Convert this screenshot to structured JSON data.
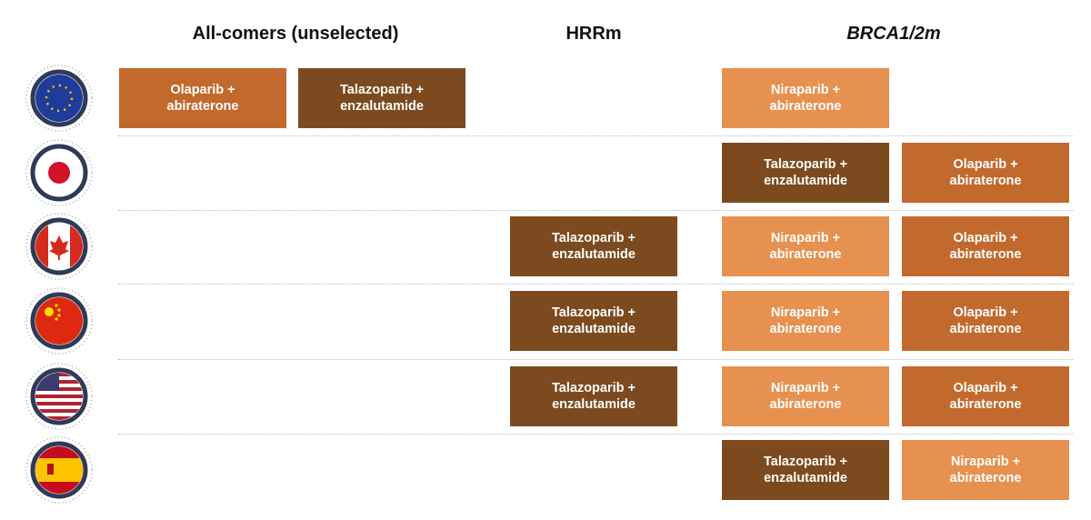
{
  "headers": [
    "All-comers (unselected)",
    "HRRm",
    "BRCA1/2m"
  ],
  "rows": [
    {
      "all_comers": [
        {
          "lines": [
            "Olaparib +",
            "abiraterone"
          ],
          "color": "#c2692d"
        },
        {
          "lines": [
            "Talazoparib +",
            "enzalutamide"
          ],
          "color": "#7d4a1f"
        }
      ],
      "hrrm": [],
      "brca": [
        {
          "lines": [
            "Niraparib +",
            "abiraterone"
          ],
          "color": "#e6914f"
        }
      ]
    },
    {
      "all_comers": [],
      "hrrm": [],
      "brca": [
        {
          "lines": [
            "Talazoparib +",
            "enzalutamide"
          ],
          "color": "#7d4a1f"
        },
        {
          "lines": [
            "Olaparib +",
            "abiraterone"
          ],
          "color": "#c2692d"
        }
      ]
    },
    {
      "all_comers": [],
      "hrrm": [
        {
          "lines": [
            "Talazoparib +",
            "enzalutamide"
          ],
          "color": "#7d4a1f"
        }
      ],
      "brca": [
        {
          "lines": [
            "Niraparib +",
            "abiraterone"
          ],
          "color": "#e6914f"
        },
        {
          "lines": [
            "Olaparib +",
            "abiraterone"
          ],
          "color": "#c2692d"
        }
      ]
    },
    {
      "all_comers": [],
      "hrrm": [
        {
          "lines": [
            "Talazoparib +",
            "enzalutamide"
          ],
          "color": "#7d4a1f"
        }
      ],
      "brca": [
        {
          "lines": [
            "Niraparib +",
            "abiraterone"
          ],
          "color": "#e6914f"
        },
        {
          "lines": [
            "Olaparib +",
            "abiraterone"
          ],
          "color": "#c2692d"
        }
      ]
    },
    {
      "all_comers": [],
      "hrrm": [
        {
          "lines": [
            "Talazoparib +",
            "enzalutamide"
          ],
          "color": "#7d4a1f"
        }
      ],
      "brca": [
        {
          "lines": [
            "Niraparib +",
            "abiraterone"
          ],
          "color": "#e6914f"
        },
        {
          "lines": [
            "Olaparib +",
            "abiraterone"
          ],
          "color": "#c2692d"
        }
      ]
    },
    {
      "all_comers": [],
      "hrrm": [],
      "brca": [
        {
          "lines": [
            "Talazoparib +",
            "enzalutamide"
          ],
          "color": "#7d4a1f"
        },
        {
          "lines": [
            "Niraparib +",
            "abiraterone"
          ],
          "color": "#e6914f"
        }
      ]
    }
  ]
}
